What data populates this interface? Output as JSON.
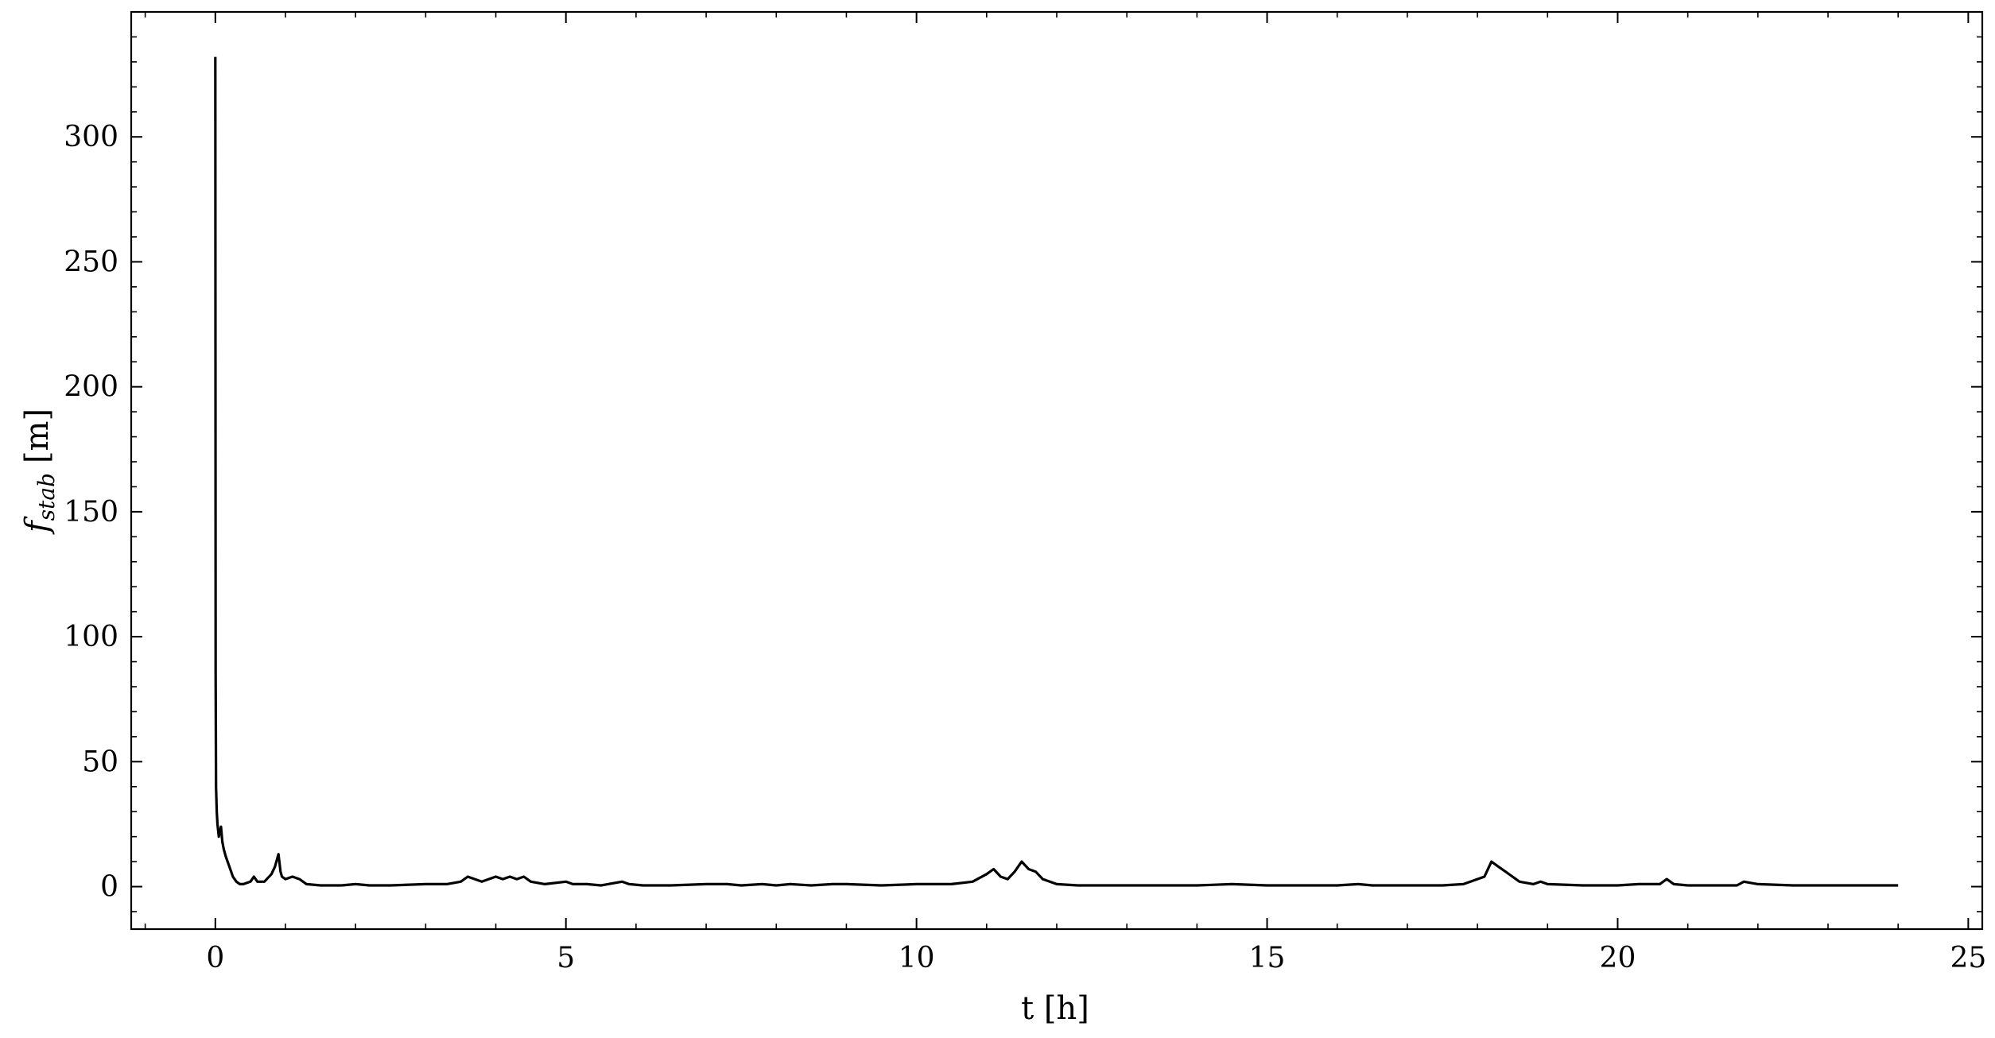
{
  "chart_data": {
    "type": "line",
    "title": "",
    "xlabel": "t [h]",
    "ylabel_main": "f",
    "ylabel_sub": "stab",
    "ylabel_unit": "[m]",
    "xlim": [
      -1.2,
      25.2
    ],
    "ylim": [
      -17,
      350
    ],
    "xticks": [
      0,
      5,
      10,
      15,
      20,
      25
    ],
    "yticks": [
      0,
      50,
      100,
      150,
      200,
      250,
      300
    ],
    "xtick_labels": [
      "0",
      "5",
      "10",
      "15",
      "20",
      "25"
    ],
    "ytick_labels": [
      "0",
      "50",
      "100",
      "150",
      "200",
      "250",
      "300"
    ],
    "grid": false,
    "line_color": "#000000",
    "series": [
      {
        "name": "f_stab",
        "x": [
          0,
          0.004,
          0.01,
          0.02,
          0.03,
          0.05,
          0.08,
          0.1,
          0.12,
          0.15,
          0.2,
          0.25,
          0.3,
          0.35,
          0.4,
          0.5,
          0.55,
          0.6,
          0.7,
          0.8,
          0.85,
          0.9,
          0.93,
          0.95,
          1.0,
          1.1,
          1.2,
          1.3,
          1.5,
          1.8,
          2.0,
          2.2,
          2.5,
          3.0,
          3.3,
          3.5,
          3.6,
          3.7,
          3.8,
          3.9,
          4.0,
          4.1,
          4.2,
          4.3,
          4.4,
          4.5,
          4.7,
          5.0,
          5.1,
          5.3,
          5.5,
          5.8,
          5.9,
          6.1,
          6.5,
          7.0,
          7.3,
          7.5,
          7.8,
          8.0,
          8.2,
          8.5,
          8.8,
          9.0,
          9.5,
          10.0,
          10.5,
          10.8,
          11.0,
          11.1,
          11.2,
          11.3,
          11.4,
          11.5,
          11.6,
          11.7,
          11.8,
          12.0,
          12.3,
          12.5,
          13.0,
          13.5,
          14.0,
          14.5,
          15.0,
          15.5,
          16.0,
          16.3,
          16.5,
          17.0,
          17.5,
          17.8,
          18.0,
          18.1,
          18.2,
          18.3,
          18.4,
          18.5,
          18.6,
          18.8,
          18.9,
          19.0,
          19.5,
          20.0,
          20.3,
          20.6,
          20.7,
          20.8,
          21.0,
          21.5,
          21.7,
          21.8,
          22.0,
          22.5,
          23.0,
          23.5,
          24.0
        ],
        "values": [
          332,
          85,
          40,
          30,
          25,
          20,
          24,
          18,
          15,
          12,
          8,
          4,
          2,
          1,
          1,
          2,
          4,
          2,
          2,
          5,
          8,
          13,
          6,
          4,
          3,
          4,
          3,
          1,
          0.5,
          0.5,
          1,
          0.5,
          0.5,
          1,
          1,
          2,
          4,
          3,
          2,
          3,
          4,
          3,
          4,
          3,
          4,
          2,
          1,
          2,
          1,
          1,
          0.5,
          2,
          1,
          0.5,
          0.5,
          1,
          1,
          0.5,
          1,
          0.5,
          1,
          0.5,
          1,
          1,
          0.5,
          1,
          1,
          2,
          5,
          7,
          4,
          3,
          6,
          10,
          7,
          6,
          3,
          1,
          0.5,
          0.5,
          0.5,
          0.5,
          0.5,
          1,
          0.5,
          0.5,
          0.5,
          1,
          0.5,
          0.5,
          0.5,
          1,
          3,
          4,
          10,
          8,
          6,
          4,
          2,
          1,
          2,
          1,
          0.5,
          0.5,
          1,
          1,
          3,
          1,
          0.5,
          0.5,
          0.5,
          2,
          1,
          0.5,
          0.5,
          0.5,
          0.5
        ]
      }
    ]
  }
}
